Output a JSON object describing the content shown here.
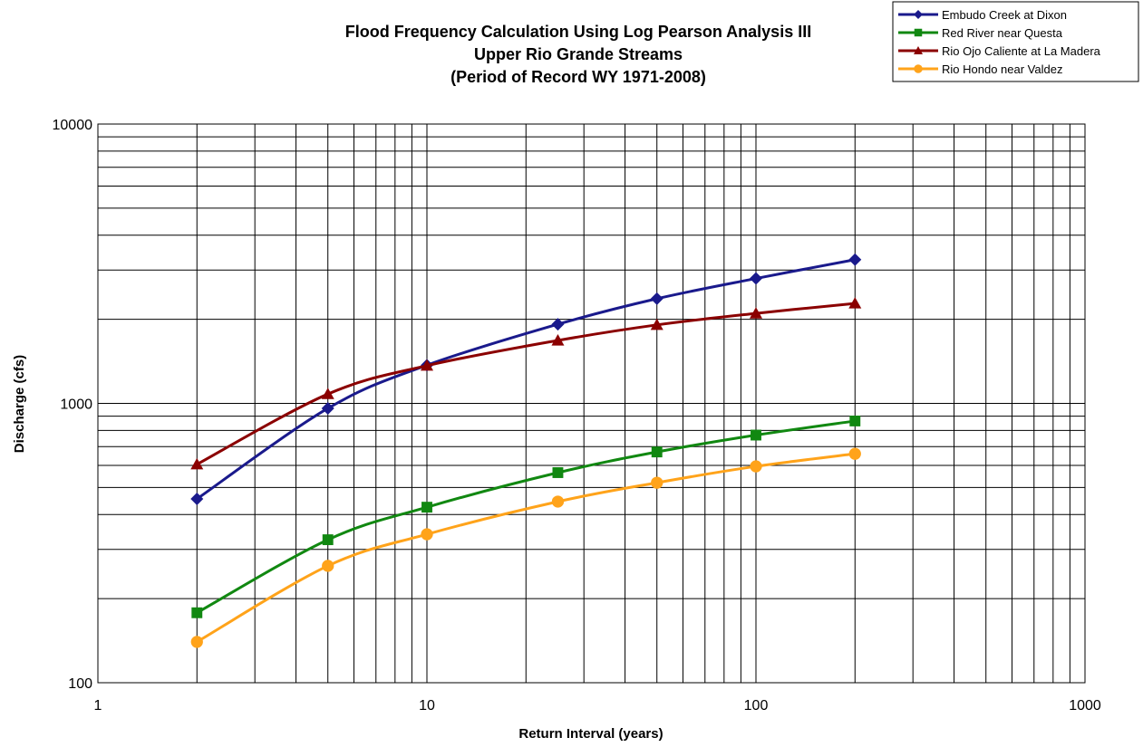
{
  "chart_data": {
    "type": "line",
    "title": [
      "Flood Frequency Calculation Using Log Pearson Analysis III",
      "Upper Rio Grande Streams",
      "(Period of Record WY 1971-2008)"
    ],
    "xlabel": "Return Interval (years)",
    "ylabel": "Discharge (cfs)",
    "xscale": "log",
    "yscale": "log",
    "xlim": [
      1,
      1000
    ],
    "ylim": [
      100,
      10000
    ],
    "xticks": [
      "1",
      "10",
      "100",
      "1000"
    ],
    "yticks": [
      "100",
      "1000",
      "10000"
    ],
    "grid": true,
    "legend_position": "top-right",
    "x": [
      2,
      5,
      10,
      25,
      50,
      100,
      200
    ],
    "series": [
      {
        "name": "Embudo Creek at Dixon",
        "color": "#1a1a8c",
        "marker": "diamond",
        "values": [
          455,
          960,
          1370,
          1920,
          2370,
          2800,
          3270
        ]
      },
      {
        "name": "Red River near Questa",
        "color": "#118811",
        "marker": "square",
        "values": [
          178,
          325,
          425,
          565,
          670,
          770,
          865
        ]
      },
      {
        "name": "Rio Ojo Caliente at La Madera",
        "color": "#8b0000",
        "marker": "triangle",
        "values": [
          605,
          1080,
          1365,
          1680,
          1910,
          2100,
          2280
        ]
      },
      {
        "name": "Rio Hondo near Valdez",
        "color": "#ffa31a",
        "marker": "circle",
        "values": [
          140,
          262,
          340,
          445,
          520,
          595,
          660
        ]
      }
    ]
  }
}
